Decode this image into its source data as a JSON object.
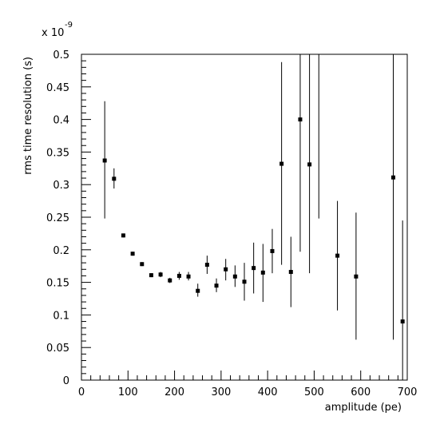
{
  "chart_data": {
    "type": "scatter",
    "title": "",
    "xlabel": "amplitude (pe)",
    "ylabel": "rms time resolution (s)",
    "y_exponent_label": "x 10",
    "y_exponent_power": "-9",
    "xlim": [
      0,
      700
    ],
    "ylim": [
      0,
      0.5
    ],
    "grid": false,
    "legend": "none",
    "x_ticks": [
      0,
      100,
      200,
      300,
      400,
      500,
      600,
      700
    ],
    "y_ticks": [
      0,
      0.05,
      0.1,
      0.15,
      0.2,
      0.25,
      0.3,
      0.35,
      0.4,
      0.45,
      0.5
    ],
    "x_tick_labels": [
      "0",
      "100",
      "200",
      "300",
      "400",
      "500",
      "600",
      "700"
    ],
    "y_tick_labels": [
      "0",
      "0.05",
      "0.1",
      "0.15",
      "0.2",
      "0.25",
      "0.3",
      "0.35",
      "0.4",
      "0.45",
      "0.5"
    ],
    "points": [
      {
        "x": 50,
        "y": 0.337,
        "lo": 0.248,
        "hi": 0.428
      },
      {
        "x": 70,
        "y": 0.309,
        "lo": 0.294,
        "hi": 0.325
      },
      {
        "x": 90,
        "y": 0.222,
        "lo": 0.219,
        "hi": 0.225
      },
      {
        "x": 110,
        "y": 0.194,
        "lo": 0.191,
        "hi": 0.197
      },
      {
        "x": 130,
        "y": 0.178,
        "lo": 0.175,
        "hi": 0.181
      },
      {
        "x": 150,
        "y": 0.161,
        "lo": 0.158,
        "hi": 0.164
      },
      {
        "x": 170,
        "y": 0.162,
        "lo": 0.158,
        "hi": 0.166
      },
      {
        "x": 190,
        "y": 0.153,
        "lo": 0.149,
        "hi": 0.157
      },
      {
        "x": 210,
        "y": 0.16,
        "lo": 0.154,
        "hi": 0.166
      },
      {
        "x": 230,
        "y": 0.159,
        "lo": 0.153,
        "hi": 0.166
      },
      {
        "x": 250,
        "y": 0.137,
        "lo": 0.128,
        "hi": 0.148
      },
      {
        "x": 270,
        "y": 0.177,
        "lo": 0.163,
        "hi": 0.191
      },
      {
        "x": 290,
        "y": 0.145,
        "lo": 0.135,
        "hi": 0.156
      },
      {
        "x": 310,
        "y": 0.17,
        "lo": 0.153,
        "hi": 0.186
      },
      {
        "x": 330,
        "y": 0.159,
        "lo": 0.143,
        "hi": 0.176
      },
      {
        "x": 350,
        "y": 0.151,
        "lo": 0.122,
        "hi": 0.18
      },
      {
        "x": 370,
        "y": 0.172,
        "lo": 0.133,
        "hi": 0.211
      },
      {
        "x": 390,
        "y": 0.165,
        "lo": 0.12,
        "hi": 0.209
      },
      {
        "x": 410,
        "y": 0.198,
        "lo": 0.164,
        "hi": 0.232
      },
      {
        "x": 430,
        "y": 0.332,
        "lo": 0.177,
        "hi": 0.488
      },
      {
        "x": 450,
        "y": 0.166,
        "lo": 0.112,
        "hi": 0.22
      },
      {
        "x": 470,
        "y": 0.4,
        "lo": 0.197,
        "hi": 0.5
      },
      {
        "x": 490,
        "y": 0.331,
        "lo": 0.164,
        "hi": 0.5
      },
      {
        "x": 510,
        "y": 0.5,
        "lo": 0.248,
        "hi": 0.5
      },
      {
        "x": 550,
        "y": 0.191,
        "lo": 0.107,
        "hi": 0.275
      },
      {
        "x": 590,
        "y": 0.159,
        "lo": 0.062,
        "hi": 0.257
      },
      {
        "x": 670,
        "y": 0.311,
        "lo": 0.062,
        "hi": 0.5
      },
      {
        "x": 690,
        "y": 0.09,
        "lo": 0.0,
        "hi": 0.245
      }
    ]
  }
}
